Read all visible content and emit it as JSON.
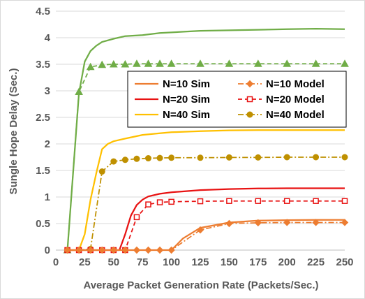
{
  "chart_data": {
    "type": "line",
    "title": "",
    "xlabel": "Average Packet Generation Rate (Packets/Sec.)",
    "ylabel": "Sungle Hope Delay (Sec.)",
    "xlim": [
      0,
      250
    ],
    "ylim": [
      0,
      4.5
    ],
    "xticks": [
      0,
      25,
      50,
      75,
      100,
      125,
      150,
      175,
      200,
      225,
      250
    ],
    "yticks": [
      0,
      0.5,
      1,
      1.5,
      2,
      2.5,
      3,
      3.5,
      4,
      4.5
    ],
    "xtick_labels": [
      "0",
      "25",
      "50",
      "75",
      "100",
      "125",
      "150",
      "175",
      "200",
      "225",
      "250"
    ],
    "ytick_labels": [
      "0",
      "0.5",
      "1",
      "1.5",
      "2",
      "2.5",
      "3",
      "3.5",
      "4",
      "4.5"
    ],
    "grid": "horizontal",
    "legend_placement": "center-right",
    "series": [
      {
        "name": "N=10 Sim",
        "color": "#ED7D31",
        "style": "solid",
        "marker": "none",
        "x": [
          10,
          50,
          100,
          110,
          125,
          150,
          175,
          200,
          225,
          250
        ],
        "y": [
          0,
          0,
          0,
          0.22,
          0.42,
          0.52,
          0.555,
          0.565,
          0.57,
          0.57
        ]
      },
      {
        "name": "N=10 Model",
        "color": "#ED7D31",
        "style": "dash-dot",
        "marker": "diamond",
        "x": [
          10,
          20,
          30,
          40,
          50,
          60,
          70,
          80,
          90,
          100,
          125,
          150,
          175,
          200,
          225,
          250
        ],
        "y": [
          0,
          0,
          0,
          0,
          0,
          0,
          0,
          0,
          0,
          0,
          0.38,
          0.5,
          0.515,
          0.52,
          0.52,
          0.52
        ]
      },
      {
        "name": "N=20 Sim",
        "color": "#E81212",
        "style": "solid",
        "marker": "none",
        "x": [
          10,
          55,
          60,
          65,
          70,
          75,
          80,
          90,
          100,
          125,
          150,
          175,
          200,
          225,
          250
        ],
        "y": [
          0,
          0,
          0.3,
          0.65,
          0.85,
          0.95,
          1.01,
          1.06,
          1.09,
          1.13,
          1.15,
          1.16,
          1.165,
          1.165,
          1.165
        ]
      },
      {
        "name": "N=20 Model",
        "color": "#E81212",
        "style": "dash",
        "marker": "square",
        "x": [
          10,
          20,
          30,
          40,
          50,
          60,
          70,
          80,
          90,
          100,
          125,
          150,
          175,
          200,
          225,
          250
        ],
        "y": [
          0,
          0,
          0,
          0,
          0,
          0,
          0.62,
          0.86,
          0.9,
          0.91,
          0.92,
          0.925,
          0.925,
          0.925,
          0.925,
          0.925
        ]
      },
      {
        "name": "N=40 Sim",
        "color": "#FFC000",
        "style": "solid",
        "marker": "none",
        "x": [
          10,
          20,
          25,
          30,
          35,
          40,
          45,
          50,
          60,
          75,
          90,
          100,
          125,
          150,
          175,
          200,
          225,
          250
        ],
        "y": [
          0,
          0,
          0.3,
          0.95,
          1.45,
          1.9,
          2.0,
          2.05,
          2.1,
          2.17,
          2.2,
          2.22,
          2.24,
          2.255,
          2.26,
          2.26,
          2.26,
          2.26
        ]
      },
      {
        "name": "N=40 Model",
        "color": "#BF9000",
        "style": "dash-dot",
        "marker": "circle",
        "x": [
          10,
          20,
          30,
          40,
          50,
          60,
          70,
          80,
          90,
          100,
          125,
          150,
          175,
          200,
          225,
          250
        ],
        "y": [
          0,
          0,
          0.02,
          1.48,
          1.67,
          1.7,
          1.72,
          1.73,
          1.735,
          1.74,
          1.74,
          1.745,
          1.745,
          1.75,
          1.75,
          1.75
        ]
      },
      {
        "name": "",
        "color": "#70AD47",
        "style": "solid",
        "marker": "none",
        "x": [
          10,
          20,
          25,
          30,
          35,
          40,
          50,
          60,
          75,
          90,
          100,
          125,
          150,
          175,
          200,
          225,
          250
        ],
        "y": [
          0,
          2.95,
          3.55,
          3.75,
          3.85,
          3.92,
          3.98,
          4.03,
          4.05,
          4.09,
          4.1,
          4.13,
          4.14,
          4.15,
          4.16,
          4.17,
          4.16
        ]
      },
      {
        "name": "",
        "color": "#70AD47",
        "style": "dash",
        "marker": "triangle",
        "x": [
          10,
          20,
          30,
          40,
          50,
          60,
          70,
          80,
          90,
          100,
          125,
          150,
          175,
          200,
          225,
          250
        ],
        "y": [
          0,
          2.98,
          3.45,
          3.49,
          3.5,
          3.5,
          3.51,
          3.51,
          3.51,
          3.51,
          3.51,
          3.51,
          3.51,
          3.51,
          3.51,
          3.51
        ]
      }
    ],
    "legend": [
      {
        "label": "N=10 Sim",
        "series": 0
      },
      {
        "label": "N=10 Model",
        "series": 1
      },
      {
        "label": "N=20 Sim",
        "series": 2
      },
      {
        "label": "N=20 Model",
        "series": 3
      },
      {
        "label": "N=40 Sim",
        "series": 4
      },
      {
        "label": "N=40 Model",
        "series": 5
      }
    ]
  }
}
